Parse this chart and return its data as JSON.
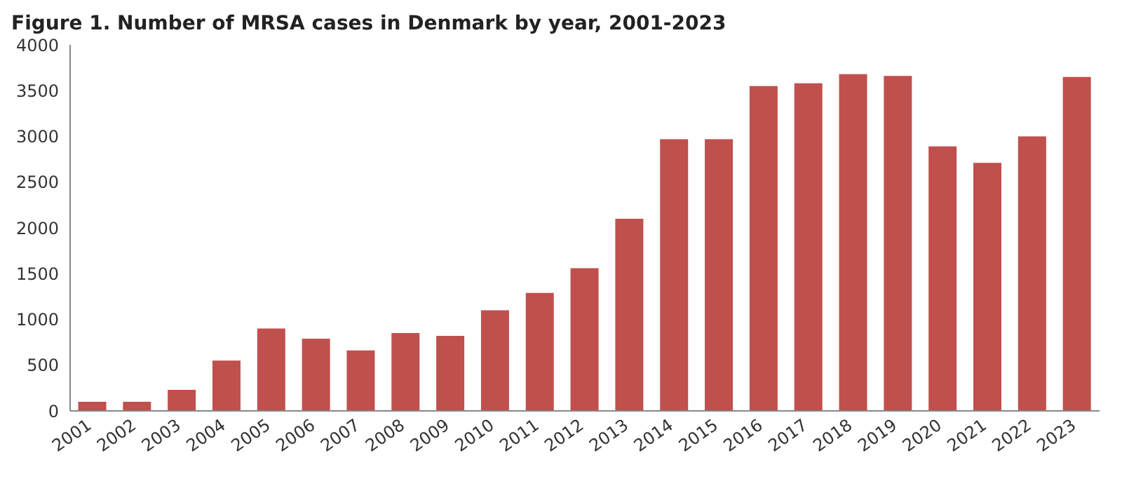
{
  "chart_data": {
    "type": "bar",
    "title": "Figure 1. Number of MRSA cases in Denmark by year, 2001-2023",
    "categories": [
      "2001",
      "2002",
      "2003",
      "2004",
      "2005",
      "2006",
      "2007",
      "2008",
      "2009",
      "2010",
      "2011",
      "2012",
      "2013",
      "2014",
      "2015",
      "2016",
      "2017",
      "2018",
      "2019",
      "2020",
      "2021",
      "2022",
      "2023"
    ],
    "values": [
      100,
      100,
      230,
      550,
      900,
      790,
      660,
      850,
      820,
      1100,
      1290,
      1560,
      2100,
      2970,
      2970,
      3550,
      3580,
      3680,
      3660,
      2890,
      2710,
      3000,
      3650
    ],
    "color": "#c0504d",
    "ylim": [
      0,
      4000
    ],
    "yticks": [
      0,
      500,
      1000,
      1500,
      2000,
      2500,
      3000,
      3500,
      4000
    ]
  }
}
